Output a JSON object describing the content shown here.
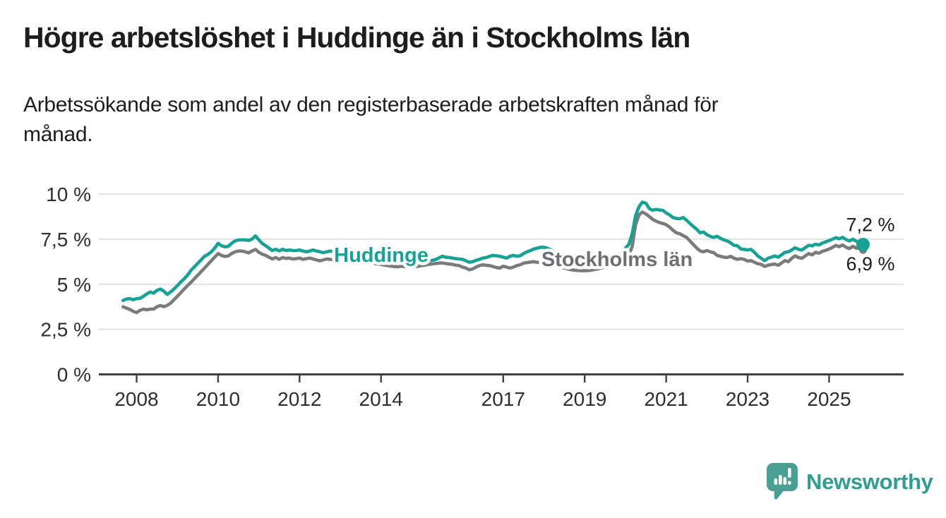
{
  "title": "Högre arbetslöshet i Huddinge än i Stockholms län",
  "subtitle": {
    "line1": "Arbetssökande som andel av den registerbaserade arbetskraften månad för",
    "line2": "månad."
  },
  "branding": {
    "wordmark": "Newsworthy",
    "icon": "speech-bubble-bar-chart",
    "wordmark_color": "#2e9e93",
    "icon_color": "#4a9f95"
  },
  "chart_data": {
    "type": "line",
    "title": "Högre arbetslöshet i Huddinge än i Stockholms län",
    "subtitle": "Arbetssökande som andel av den registerbaserade arbetskraften månad för månad.",
    "unit": "%",
    "frequency": "monthly",
    "start_month": "2007-09",
    "end_month": "2025-11",
    "grid": true,
    "legend": "inline-labels",
    "x_axis": {
      "ticks": [
        2008,
        2010,
        2012,
        2014,
        2017,
        2019,
        2021,
        2023,
        2025
      ]
    },
    "y_axis": {
      "range": [
        0,
        10.5
      ],
      "ticks": [
        {
          "value": 10,
          "label": "10 %"
        },
        {
          "value": 7.5,
          "label": "7,5 %"
        },
        {
          "value": 5,
          "label": "5 %"
        },
        {
          "value": 2.5,
          "label": "2,5 %"
        },
        {
          "value": 0,
          "label": "0 %"
        }
      ]
    },
    "series": [
      {
        "name": "Huddinge",
        "color": "#16a294",
        "label_color": "#16a294",
        "end_label": "7,2 %",
        "end_value": 7.2,
        "values": [
          4.1,
          4.18,
          4.2,
          4.14,
          4.2,
          4.22,
          4.33,
          4.46,
          4.57,
          4.5,
          4.66,
          4.73,
          4.62,
          4.44,
          4.57,
          4.73,
          4.92,
          5.12,
          5.3,
          5.5,
          5.76,
          5.96,
          6.16,
          6.35,
          6.55,
          6.65,
          6.8,
          7.0,
          7.27,
          7.14,
          7.07,
          7.1,
          7.27,
          7.4,
          7.46,
          7.46,
          7.46,
          7.43,
          7.5,
          7.68,
          7.46,
          7.27,
          7.14,
          7.0,
          6.87,
          6.94,
          6.85,
          6.94,
          6.87,
          6.9,
          6.87,
          6.87,
          6.9,
          6.84,
          6.8,
          6.84,
          6.9,
          6.84,
          6.8,
          6.75,
          6.8,
          6.84,
          6.8,
          6.75,
          6.8,
          6.95,
          7.05,
          6.95,
          6.85,
          6.8,
          6.9,
          6.8,
          6.7,
          6.65,
          6.6,
          6.55,
          6.5,
          6.45,
          6.4,
          6.38,
          6.35,
          6.33,
          6.38,
          6.35,
          6.3,
          6.28,
          6.3,
          6.32,
          6.3,
          6.28,
          6.3,
          6.32,
          6.36,
          6.45,
          6.55,
          6.5,
          6.48,
          6.45,
          6.42,
          6.4,
          6.38,
          6.3,
          6.22,
          6.25,
          6.32,
          6.38,
          6.45,
          6.48,
          6.55,
          6.6,
          6.58,
          6.55,
          6.5,
          6.45,
          6.55,
          6.6,
          6.55,
          6.58,
          6.7,
          6.8,
          6.87,
          6.95,
          7.0,
          7.05,
          7.05,
          7.0,
          6.9,
          6.8,
          6.7,
          6.65,
          6.6,
          6.55,
          6.5,
          6.45,
          6.42,
          6.4,
          6.4,
          6.38,
          6.4,
          6.45,
          6.48,
          6.5,
          6.55,
          6.55,
          6.58,
          6.6,
          6.65,
          6.7,
          7.0,
          7.2,
          7.8,
          8.8,
          9.3,
          9.55,
          9.5,
          9.2,
          9.1,
          9.15,
          9.12,
          9.1,
          8.95,
          8.85,
          8.7,
          8.65,
          8.63,
          8.7,
          8.55,
          8.37,
          8.2,
          8.05,
          7.85,
          7.9,
          7.75,
          7.65,
          7.6,
          7.66,
          7.55,
          7.46,
          7.4,
          7.29,
          7.16,
          7.13,
          6.96,
          6.93,
          6.9,
          6.93,
          6.77,
          6.57,
          6.44,
          6.31,
          6.44,
          6.5,
          6.57,
          6.5,
          6.63,
          6.77,
          6.8,
          6.9,
          7.03,
          6.93,
          6.9,
          7.03,
          7.16,
          7.13,
          7.22,
          7.18,
          7.28,
          7.35,
          7.42,
          7.5,
          7.58,
          7.52,
          7.6,
          7.48,
          7.4,
          7.5,
          7.38,
          7.28,
          7.2
        ]
      },
      {
        "name": "Stockholms län",
        "color": "#7b7b7e",
        "label_color": "#6e6e73",
        "end_label": "6,9 %",
        "end_value": 6.9,
        "values": [
          3.75,
          3.68,
          3.6,
          3.5,
          3.43,
          3.55,
          3.62,
          3.58,
          3.62,
          3.62,
          3.75,
          3.82,
          3.76,
          3.82,
          3.95,
          4.14,
          4.33,
          4.53,
          4.73,
          4.92,
          5.1,
          5.3,
          5.5,
          5.7,
          5.9,
          6.1,
          6.3,
          6.5,
          6.7,
          6.6,
          6.54,
          6.57,
          6.7,
          6.8,
          6.84,
          6.84,
          6.8,
          6.74,
          6.84,
          6.93,
          6.77,
          6.67,
          6.6,
          6.5,
          6.4,
          6.48,
          6.38,
          6.48,
          6.43,
          6.45,
          6.4,
          6.42,
          6.45,
          6.38,
          6.42,
          6.45,
          6.4,
          6.35,
          6.3,
          6.35,
          6.4,
          6.38,
          6.35,
          6.32,
          6.4,
          6.48,
          6.52,
          6.45,
          6.38,
          6.35,
          6.4,
          6.33,
          6.25,
          6.2,
          6.15,
          6.12,
          6.1,
          6.06,
          6.03,
          6.0,
          5.98,
          5.97,
          6.0,
          5.98,
          5.96,
          5.95,
          5.97,
          6.0,
          6.03,
          6.06,
          6.1,
          6.12,
          6.15,
          6.17,
          6.18,
          6.15,
          6.12,
          6.1,
          6.06,
          6.03,
          5.95,
          5.9,
          5.8,
          5.85,
          5.95,
          6.03,
          6.08,
          6.05,
          6.03,
          5.98,
          5.92,
          5.9,
          6.0,
          5.95,
          5.9,
          5.95,
          6.03,
          6.08,
          6.17,
          6.2,
          6.23,
          6.25,
          6.22,
          6.2,
          6.18,
          6.15,
          6.1,
          6.05,
          6.0,
          5.95,
          5.9,
          5.85,
          5.8,
          5.78,
          5.76,
          5.75,
          5.75,
          5.76,
          5.78,
          5.82,
          5.85,
          5.9,
          5.95,
          6.0,
          6.05,
          6.1,
          6.15,
          6.2,
          6.4,
          6.6,
          7.1,
          8.3,
          8.85,
          9.0,
          8.9,
          8.76,
          8.6,
          8.5,
          8.42,
          8.37,
          8.3,
          8.17,
          8.0,
          7.85,
          7.8,
          7.7,
          7.6,
          7.4,
          7.2,
          7.0,
          6.85,
          6.8,
          6.87,
          6.8,
          6.75,
          6.6,
          6.55,
          6.5,
          6.48,
          6.55,
          6.44,
          6.38,
          6.42,
          6.38,
          6.28,
          6.31,
          6.22,
          6.14,
          6.1,
          5.99,
          6.05,
          6.09,
          6.12,
          6.05,
          6.18,
          6.31,
          6.25,
          6.44,
          6.57,
          6.48,
          6.44,
          6.57,
          6.7,
          6.63,
          6.77,
          6.72,
          6.82,
          6.88,
          6.95,
          7.05,
          7.15,
          7.08,
          7.18,
          7.05,
          6.98,
          7.1,
          7.0,
          6.98,
          6.9
        ]
      }
    ]
  }
}
